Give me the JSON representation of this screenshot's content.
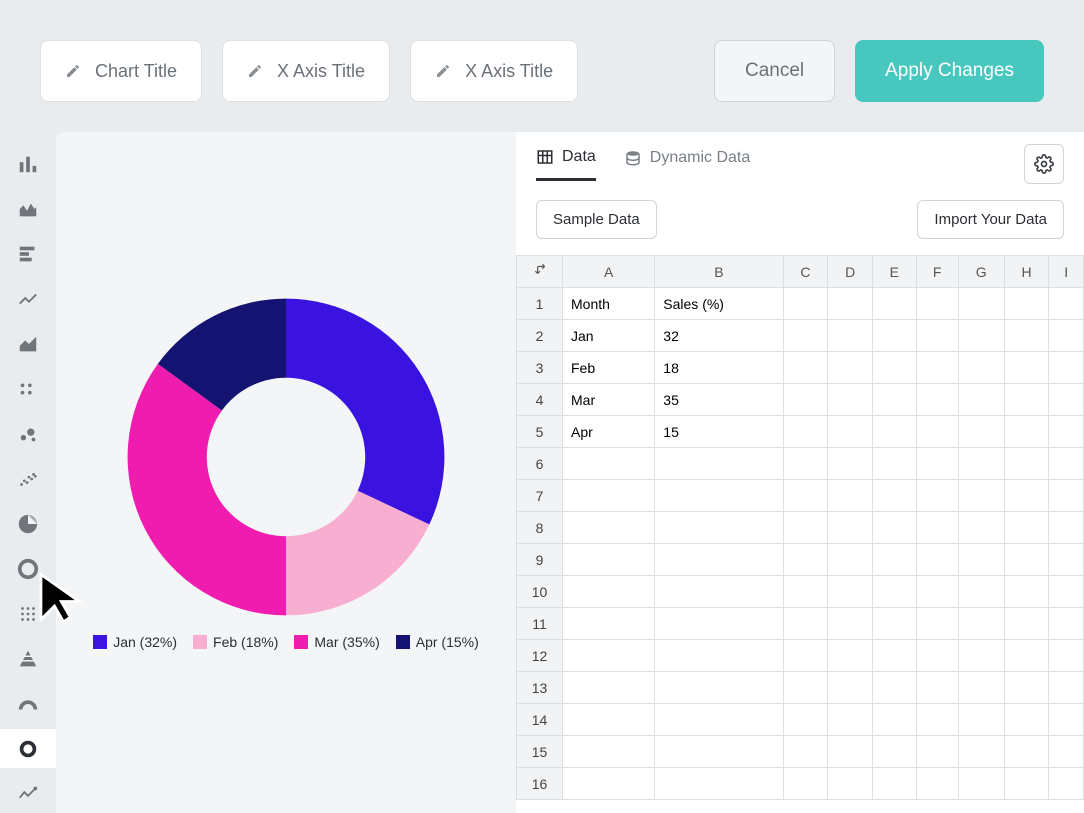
{
  "toolbar": {
    "chart_title_placeholder": "Chart Title",
    "x_axis_title_placeholder": "X Axis Title",
    "y_axis_title_placeholder": "X Axis Title",
    "cancel_label": "Cancel",
    "apply_label": "Apply Changes",
    "apply_bg": "#48c7bf"
  },
  "rail": {
    "items": [
      "bar-chart-icon",
      "histogram-icon",
      "horizontal-bar-icon",
      "line-chart-icon",
      "area-chart-icon",
      "dots-icon",
      "bubbles-icon",
      "scatter-dense-icon",
      "pie-chart-icon",
      "donut-icon",
      "grid-matrix-icon",
      "pyramid-icon",
      "gauge-icon",
      "ring-icon",
      "spark-icon"
    ],
    "selected_index": 13
  },
  "chart": {
    "type": "donut",
    "inner_radius": 0.5,
    "outer_radius": 1.0,
    "background_color": "#f4f5f6",
    "labels": [
      "Jan",
      "Feb",
      "Mar",
      "Apr"
    ],
    "values": [
      32,
      18,
      35,
      15
    ],
    "colors": [
      "#3b13e0",
      "#f7aed0",
      "#f01cb0",
      "#141371"
    ],
    "legend_format": "{label} ({value}%)",
    "legend_fontsize": 14,
    "legend_text_color": "#2b2f33"
  },
  "tabs": {
    "data_label": "Data",
    "dynamic_label": "Dynamic Data",
    "active": "data"
  },
  "actions": {
    "sample_label": "Sample Data",
    "import_label": "Import Your Data"
  },
  "sheet": {
    "columns": [
      "A",
      "B",
      "C",
      "D",
      "E",
      "F",
      "G",
      "H",
      "I"
    ],
    "total_rows": 16,
    "data": [
      [
        "Month",
        "Sales (%)"
      ],
      [
        "Jan",
        "32"
      ],
      [
        "Feb",
        "18"
      ],
      [
        "Mar",
        "35"
      ],
      [
        "Apr",
        "15"
      ]
    ]
  }
}
